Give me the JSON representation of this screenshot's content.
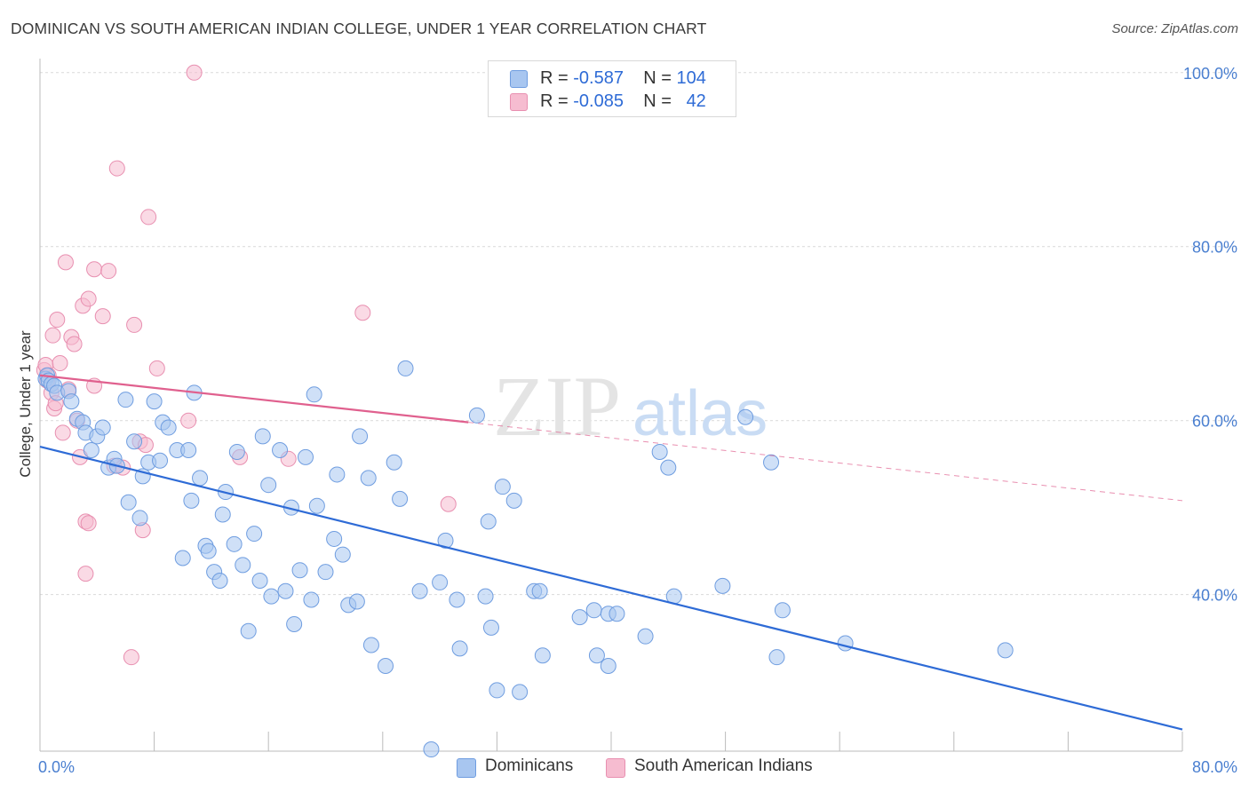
{
  "header": {
    "title": "DOMINICAN VS SOUTH AMERICAN INDIAN COLLEGE, UNDER 1 YEAR CORRELATION CHART",
    "source": "Source: ZipAtlas.com"
  },
  "watermark": {
    "zip": "ZIP",
    "atlas": "atlas"
  },
  "legend": {
    "row1": {
      "r_label": "R =",
      "r_value": "-0.587",
      "n_label": "N =",
      "n_value": "104"
    },
    "row2": {
      "r_label": "R =",
      "r_value": "-0.085",
      "n_label": "N =",
      "n_value": "42"
    }
  },
  "bottom_legend": {
    "item1": "Dominicans",
    "item2": "South American Indians"
  },
  "colors": {
    "blue_fill": "#a8c6f0",
    "blue_stroke": "#6f9de0",
    "blue_line": "#2e6bd6",
    "pink_fill": "#f6bcd0",
    "pink_stroke": "#e88fb0",
    "pink_line": "#e0608e",
    "grid": "#d9d9d9",
    "tick_label": "#4a7fd0"
  },
  "chart_data": {
    "type": "scatter",
    "title": "DOMINICAN VS SOUTH AMERICAN INDIAN COLLEGE, UNDER 1 YEAR CORRELATION CHART",
    "xlabel": "",
    "ylabel": "College, Under 1 year",
    "xlim": [
      0,
      80
    ],
    "ylim": [
      22,
      101
    ],
    "x_tick_labels": [
      "0.0%",
      "80.0%"
    ],
    "y_tick_labels": [
      "100.0%",
      "80.0%",
      "60.0%",
      "40.0%"
    ],
    "y_ticks": [
      100,
      80,
      60,
      40
    ],
    "grid": true,
    "legend_position": "top-center",
    "series": [
      {
        "name": "Dominicans",
        "color": "#6f9de0",
        "r": -0.587,
        "n": 104,
        "trend": {
          "x": [
            0,
            80
          ],
          "y": [
            57.0,
            24.5
          ]
        },
        "points": [
          [
            0.4,
            64.8
          ],
          [
            0.5,
            65.2
          ],
          [
            0.6,
            64.6
          ],
          [
            0.8,
            64.2
          ],
          [
            1.0,
            64.0
          ],
          [
            1.2,
            63.2
          ],
          [
            2.0,
            63.4
          ],
          [
            2.2,
            62.2
          ],
          [
            2.6,
            60.2
          ],
          [
            3.0,
            59.8
          ],
          [
            3.2,
            58.6
          ],
          [
            3.6,
            56.6
          ],
          [
            4.0,
            58.2
          ],
          [
            4.4,
            59.2
          ],
          [
            4.8,
            54.6
          ],
          [
            5.2,
            55.6
          ],
          [
            5.4,
            54.8
          ],
          [
            6.0,
            62.4
          ],
          [
            6.2,
            50.6
          ],
          [
            6.6,
            57.6
          ],
          [
            7.0,
            48.8
          ],
          [
            7.2,
            53.6
          ],
          [
            7.6,
            55.2
          ],
          [
            8.0,
            62.2
          ],
          [
            8.4,
            55.4
          ],
          [
            8.6,
            59.8
          ],
          [
            9.0,
            59.2
          ],
          [
            9.6,
            56.6
          ],
          [
            10.0,
            44.2
          ],
          [
            10.4,
            56.6
          ],
          [
            10.6,
            50.8
          ],
          [
            10.8,
            63.2
          ],
          [
            11.2,
            53.4
          ],
          [
            11.6,
            45.6
          ],
          [
            11.8,
            45.0
          ],
          [
            12.2,
            42.6
          ],
          [
            12.6,
            41.6
          ],
          [
            13.0,
            51.8
          ],
          [
            12.8,
            49.2
          ],
          [
            13.6,
            45.8
          ],
          [
            13.8,
            56.4
          ],
          [
            14.2,
            43.4
          ],
          [
            14.6,
            35.8
          ],
          [
            15.0,
            47.0
          ],
          [
            15.4,
            41.6
          ],
          [
            15.6,
            58.2
          ],
          [
            16.0,
            52.6
          ],
          [
            16.2,
            39.8
          ],
          [
            16.8,
            56.6
          ],
          [
            17.2,
            40.4
          ],
          [
            17.6,
            50.0
          ],
          [
            17.8,
            36.6
          ],
          [
            18.2,
            42.8
          ],
          [
            18.6,
            55.8
          ],
          [
            19.0,
            39.4
          ],
          [
            19.2,
            63.0
          ],
          [
            19.4,
            50.2
          ],
          [
            20.0,
            42.6
          ],
          [
            20.6,
            46.4
          ],
          [
            20.8,
            53.8
          ],
          [
            21.2,
            44.6
          ],
          [
            21.6,
            38.8
          ],
          [
            22.2,
            39.2
          ],
          [
            22.4,
            58.2
          ],
          [
            23.0,
            53.4
          ],
          [
            23.2,
            34.2
          ],
          [
            24.2,
            31.8
          ],
          [
            24.8,
            55.2
          ],
          [
            25.2,
            51.0
          ],
          [
            25.6,
            66.0
          ],
          [
            26.6,
            40.4
          ],
          [
            27.4,
            22.2
          ],
          [
            28.0,
            41.4
          ],
          [
            28.4,
            46.2
          ],
          [
            29.2,
            39.4
          ],
          [
            29.4,
            33.8
          ],
          [
            30.6,
            60.6
          ],
          [
            31.2,
            39.8
          ],
          [
            31.4,
            48.4
          ],
          [
            31.6,
            36.2
          ],
          [
            32.0,
            29.0
          ],
          [
            32.4,
            52.4
          ],
          [
            33.2,
            50.8
          ],
          [
            33.6,
            28.8
          ],
          [
            34.6,
            40.4
          ],
          [
            35.0,
            40.4
          ],
          [
            35.2,
            33.0
          ],
          [
            37.8,
            37.4
          ],
          [
            38.8,
            38.2
          ],
          [
            39.0,
            33.0
          ],
          [
            39.8,
            31.8
          ],
          [
            39.8,
            37.8
          ],
          [
            40.4,
            37.8
          ],
          [
            42.4,
            35.2
          ],
          [
            43.4,
            56.4
          ],
          [
            44.0,
            54.6
          ],
          [
            44.4,
            39.8
          ],
          [
            47.8,
            41.0
          ],
          [
            49.4,
            60.4
          ],
          [
            51.2,
            55.2
          ],
          [
            51.6,
            32.8
          ],
          [
            52.0,
            38.2
          ],
          [
            56.4,
            34.4
          ],
          [
            67.6,
            33.6
          ]
        ]
      },
      {
        "name": "South American Indians",
        "color": "#e88fb0",
        "r": -0.085,
        "n": 42,
        "trend": {
          "x": [
            0,
            30
          ],
          "y": [
            65.2,
            59.8
          ]
        },
        "trend_dashed": {
          "x": [
            30,
            80
          ],
          "y": [
            59.8,
            50.8
          ]
        },
        "points": [
          [
            0.3,
            65.8
          ],
          [
            0.4,
            66.4
          ],
          [
            0.5,
            64.6
          ],
          [
            0.6,
            65.2
          ],
          [
            0.8,
            63.2
          ],
          [
            0.9,
            69.8
          ],
          [
            1.0,
            61.4
          ],
          [
            1.1,
            62.0
          ],
          [
            1.2,
            71.6
          ],
          [
            1.4,
            66.6
          ],
          [
            1.6,
            58.6
          ],
          [
            1.8,
            78.2
          ],
          [
            2.0,
            63.6
          ],
          [
            2.2,
            69.6
          ],
          [
            2.4,
            68.8
          ],
          [
            2.6,
            60.0
          ],
          [
            2.8,
            55.8
          ],
          [
            3.0,
            73.2
          ],
          [
            3.2,
            48.4
          ],
          [
            3.2,
            42.4
          ],
          [
            3.4,
            74.0
          ],
          [
            3.4,
            48.2
          ],
          [
            3.8,
            64.0
          ],
          [
            3.8,
            77.4
          ],
          [
            4.4,
            72.0
          ],
          [
            4.8,
            77.2
          ],
          [
            5.2,
            54.8
          ],
          [
            5.4,
            89.0
          ],
          [
            5.8,
            54.6
          ],
          [
            6.4,
            32.8
          ],
          [
            6.6,
            71.0
          ],
          [
            7.0,
            57.6
          ],
          [
            7.2,
            47.4
          ],
          [
            7.4,
            57.2
          ],
          [
            7.6,
            83.4
          ],
          [
            8.2,
            66.0
          ],
          [
            10.4,
            60.0
          ],
          [
            10.8,
            100.0
          ],
          [
            14.0,
            55.8
          ],
          [
            17.4,
            55.6
          ],
          [
            22.6,
            72.4
          ],
          [
            28.6,
            50.4
          ]
        ]
      }
    ]
  }
}
